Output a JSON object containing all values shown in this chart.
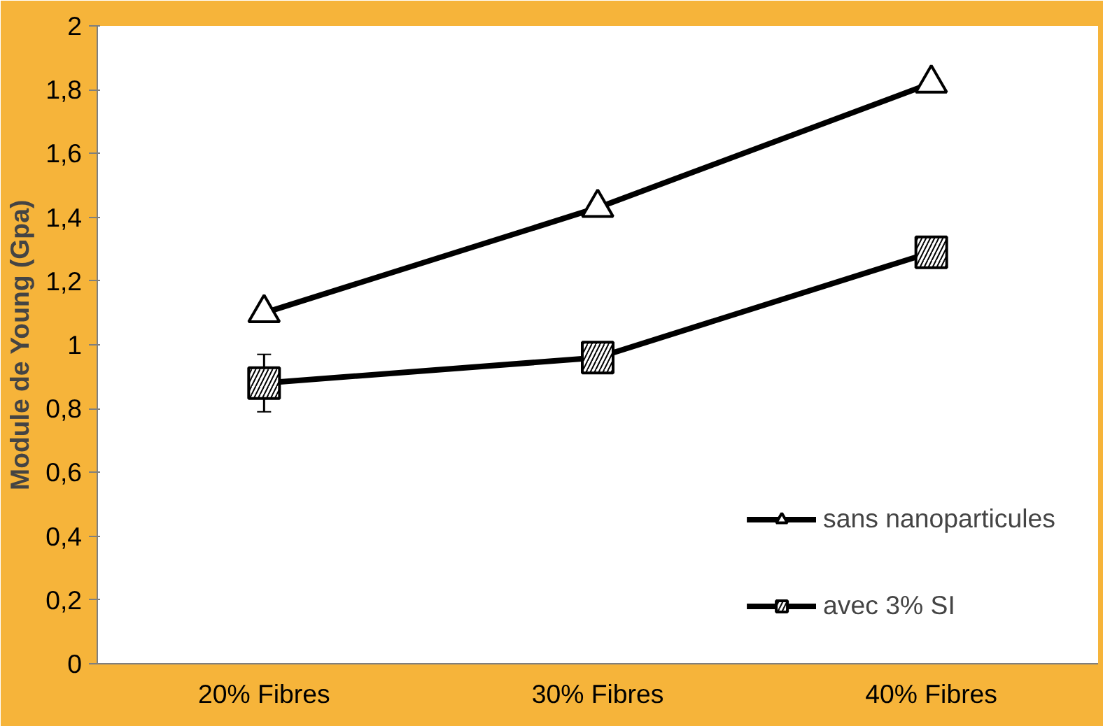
{
  "chart_data": {
    "type": "line",
    "ylabel": "Module de Young (Gpa)",
    "categories": [
      "20% Fibres",
      "30% Fibres",
      "40% Fibres"
    ],
    "series": [
      {
        "name": "sans nanoparticules",
        "color": "#000000",
        "marker": "triangle",
        "values": [
          1.1,
          1.43,
          1.82
        ]
      },
      {
        "name": "avec 3% SI",
        "color": "#000000",
        "marker": "square",
        "values": [
          0.88,
          0.96,
          1.29
        ],
        "errors": [
          0.09,
          null,
          null
        ]
      }
    ],
    "ylim": [
      0,
      2
    ],
    "yticks": [
      0,
      {
        "value": 0.2,
        "label": "0,2"
      },
      {
        "value": 0.4,
        "label": "0,4"
      },
      {
        "value": 0.6,
        "label": "0,6"
      },
      {
        "value": 0.8,
        "label": "0,8"
      },
      1,
      {
        "value": 1.2,
        "label": "1,2"
      },
      {
        "value": 1.4,
        "label": "1,4"
      },
      {
        "value": 1.6,
        "label": "1,6"
      },
      {
        "value": 1.8,
        "label": "1,8"
      },
      2
    ],
    "grid": false,
    "legend": "bottom right",
    "line_style": "solid"
  }
}
